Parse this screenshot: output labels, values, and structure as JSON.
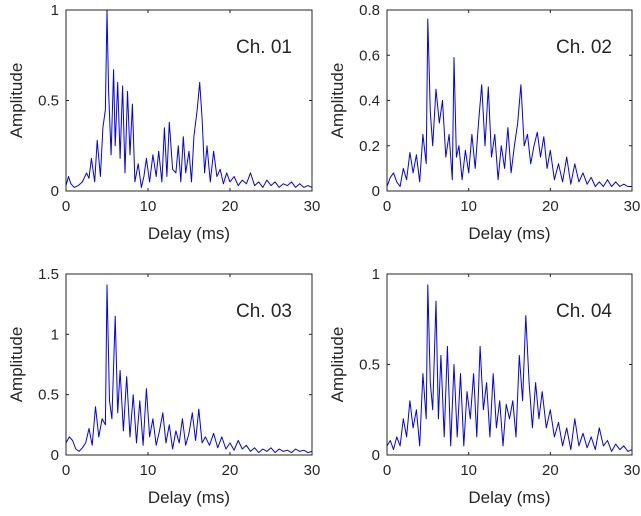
{
  "chart_data": [
    {
      "type": "line",
      "annotation": "Ch. 01",
      "xlabel": "Delay (ms)",
      "ylabel": "Amplitude",
      "xlim": [
        0,
        30
      ],
      "ylim": [
        0,
        1
      ],
      "xticks": [
        "0",
        "10",
        "20",
        "30"
      ],
      "yticks": [
        "0",
        "0.5",
        "1"
      ],
      "line_color": "#0000ff",
      "grid": false,
      "x": [
        0,
        0.3,
        0.6,
        1.0,
        1.5,
        2.0,
        2.5,
        2.8,
        3.1,
        3.5,
        3.8,
        4.2,
        4.5,
        4.8,
        5.0,
        5.2,
        5.5,
        5.8,
        6.0,
        6.3,
        6.6,
        6.9,
        7.2,
        7.5,
        7.8,
        8.1,
        8.4,
        8.8,
        9.2,
        9.5,
        9.8,
        10.2,
        10.6,
        11.0,
        11.3,
        11.7,
        12.0,
        12.3,
        12.6,
        13.0,
        13.4,
        13.7,
        14.0,
        14.3,
        14.6,
        15.0,
        15.3,
        15.6,
        16.0,
        16.3,
        16.6,
        16.9,
        17.2,
        17.6,
        18.0,
        18.4,
        18.8,
        19.2,
        19.6,
        20.0,
        20.5,
        21.0,
        21.5,
        22.0,
        22.5,
        23.0,
        23.5,
        24.0,
        24.5,
        25.0,
        25.5,
        26.0,
        26.5,
        27.0,
        27.5,
        28.0,
        28.5,
        29.0,
        29.5,
        30.0
      ],
      "y": [
        0.03,
        0.08,
        0.04,
        0.02,
        0.03,
        0.05,
        0.1,
        0.07,
        0.18,
        0.05,
        0.28,
        0.08,
        0.35,
        0.45,
        1.0,
        0.55,
        0.2,
        0.67,
        0.25,
        0.6,
        0.18,
        0.58,
        0.1,
        0.55,
        0.2,
        0.48,
        0.05,
        0.15,
        0.02,
        0.08,
        0.18,
        0.05,
        0.2,
        0.08,
        0.22,
        0.05,
        0.35,
        0.08,
        0.38,
        0.12,
        0.1,
        0.25,
        0.05,
        0.3,
        0.1,
        0.22,
        0.05,
        0.3,
        0.45,
        0.6,
        0.4,
        0.1,
        0.25,
        0.05,
        0.22,
        0.08,
        0.12,
        0.04,
        0.1,
        0.05,
        0.08,
        0.03,
        0.06,
        0.04,
        0.1,
        0.03,
        0.05,
        0.02,
        0.06,
        0.03,
        0.05,
        0.02,
        0.04,
        0.03,
        0.05,
        0.02,
        0.04,
        0.02,
        0.03,
        0.02
      ]
    },
    {
      "type": "line",
      "annotation": "Ch. 02",
      "xlabel": "Delay (ms)",
      "ylabel": "Amplitude",
      "xlim": [
        0,
        30
      ],
      "ylim": [
        0,
        0.8
      ],
      "xticks": [
        "0",
        "10",
        "20",
        "30"
      ],
      "yticks": [
        "0",
        "0.2",
        "0.4",
        "0.6",
        "0.8"
      ],
      "line_color": "#0000ff",
      "grid": false,
      "x": [
        0,
        0.4,
        0.8,
        1.2,
        1.6,
        2.0,
        2.4,
        2.8,
        3.2,
        3.6,
        4.0,
        4.4,
        4.8,
        5.0,
        5.3,
        5.6,
        6.0,
        6.4,
        6.8,
        7.2,
        7.6,
        8.0,
        8.2,
        8.5,
        8.8,
        9.2,
        9.6,
        10.0,
        10.4,
        10.8,
        11.2,
        11.6,
        12.0,
        12.4,
        12.8,
        13.2,
        13.6,
        14.0,
        14.4,
        14.8,
        15.2,
        15.6,
        16.0,
        16.4,
        16.8,
        17.2,
        17.6,
        18.0,
        18.4,
        18.8,
        19.2,
        19.6,
        20.0,
        20.5,
        21.0,
        21.5,
        22.0,
        22.5,
        23.0,
        23.5,
        24.0,
        24.5,
        25.0,
        25.5,
        26.0,
        26.5,
        27.0,
        27.5,
        28.0,
        28.5,
        29.0,
        29.5,
        30.0
      ],
      "y": [
        0.02,
        0.06,
        0.08,
        0.04,
        0.02,
        0.1,
        0.05,
        0.17,
        0.08,
        0.16,
        0.04,
        0.25,
        0.12,
        0.76,
        0.35,
        0.2,
        0.45,
        0.3,
        0.4,
        0.15,
        0.25,
        0.05,
        0.59,
        0.15,
        0.2,
        0.05,
        0.18,
        0.08,
        0.25,
        0.1,
        0.3,
        0.47,
        0.2,
        0.46,
        0.15,
        0.25,
        0.05,
        0.2,
        0.1,
        0.28,
        0.08,
        0.2,
        0.3,
        0.47,
        0.2,
        0.25,
        0.12,
        0.2,
        0.26,
        0.15,
        0.24,
        0.1,
        0.18,
        0.05,
        0.12,
        0.04,
        0.15,
        0.03,
        0.12,
        0.04,
        0.08,
        0.03,
        0.06,
        0.02,
        0.04,
        0.02,
        0.05,
        0.02,
        0.04,
        0.02,
        0.03,
        0.02,
        0.02
      ]
    },
    {
      "type": "line",
      "annotation": "Ch. 03",
      "xlabel": "Delay (ms)",
      "ylabel": "Amplitude",
      "xlim": [
        0,
        30
      ],
      "ylim": [
        0,
        1.5
      ],
      "xticks": [
        "0",
        "10",
        "20",
        "30"
      ],
      "yticks": [
        "0",
        "0.5",
        "1",
        "1.5"
      ],
      "line_color": "#0000ff",
      "grid": false,
      "x": [
        0,
        0.4,
        0.8,
        1.2,
        1.6,
        2.0,
        2.4,
        2.8,
        3.2,
        3.6,
        4.0,
        4.4,
        4.8,
        5.0,
        5.3,
        5.6,
        6.0,
        6.3,
        6.6,
        7.0,
        7.4,
        7.8,
        8.2,
        8.6,
        9.0,
        9.4,
        9.8,
        10.2,
        10.6,
        11.0,
        11.4,
        11.8,
        12.2,
        12.6,
        13.0,
        13.4,
        13.8,
        14.2,
        14.6,
        15.0,
        15.4,
        15.8,
        16.2,
        16.6,
        17.0,
        17.5,
        18.0,
        18.5,
        19.0,
        19.5,
        20.0,
        20.5,
        21.0,
        21.5,
        22.0,
        22.5,
        23.0,
        23.5,
        24.0,
        24.5,
        25.0,
        25.5,
        26.0,
        26.5,
        27.0,
        27.5,
        28.0,
        28.5,
        29.0,
        29.5,
        30.0
      ],
      "y": [
        0.1,
        0.15,
        0.12,
        0.05,
        0.03,
        0.06,
        0.1,
        0.22,
        0.08,
        0.4,
        0.15,
        0.3,
        0.25,
        1.41,
        0.45,
        0.3,
        1.15,
        0.35,
        0.7,
        0.2,
        0.65,
        0.15,
        0.5,
        0.1,
        0.45,
        0.08,
        0.55,
        0.15,
        0.3,
        0.08,
        0.2,
        0.35,
        0.1,
        0.25,
        0.05,
        0.2,
        0.1,
        0.3,
        0.08,
        0.18,
        0.35,
        0.12,
        0.38,
        0.1,
        0.15,
        0.08,
        0.18,
        0.06,
        0.15,
        0.05,
        0.1,
        0.04,
        0.12,
        0.05,
        0.08,
        0.03,
        0.06,
        0.02,
        0.05,
        0.03,
        0.06,
        0.02,
        0.05,
        0.03,
        0.04,
        0.02,
        0.05,
        0.03,
        0.04,
        0.02,
        0.03
      ]
    },
    {
      "type": "line",
      "annotation": "Ch. 04",
      "xlabel": "Delay (ms)",
      "ylabel": "Amplitude",
      "xlim": [
        0,
        30
      ],
      "ylim": [
        0,
        1
      ],
      "xticks": [
        "0",
        "10",
        "20",
        "30"
      ],
      "yticks": [
        "0",
        "0.5",
        "1"
      ],
      "line_color": "#0000ff",
      "grid": false,
      "x": [
        0,
        0.4,
        0.8,
        1.2,
        1.6,
        2.0,
        2.4,
        2.8,
        3.2,
        3.6,
        4.0,
        4.4,
        4.8,
        5.0,
        5.3,
        5.6,
        6.0,
        6.3,
        6.6,
        7.0,
        7.4,
        7.8,
        8.2,
        8.6,
        9.0,
        9.4,
        9.8,
        10.2,
        10.6,
        11.0,
        11.4,
        11.8,
        12.2,
        12.6,
        13.0,
        13.4,
        13.8,
        14.2,
        14.6,
        15.0,
        15.4,
        15.8,
        16.2,
        16.6,
        17.0,
        17.4,
        17.8,
        18.2,
        18.6,
        19.0,
        19.5,
        20.0,
        20.5,
        21.0,
        21.5,
        22.0,
        22.5,
        23.0,
        23.5,
        24.0,
        24.5,
        25.0,
        25.5,
        26.0,
        26.5,
        27.0,
        27.5,
        28.0,
        28.5,
        29.0,
        29.5,
        30.0
      ],
      "y": [
        0.05,
        0.08,
        0.03,
        0.1,
        0.05,
        0.2,
        0.1,
        0.3,
        0.15,
        0.25,
        0.05,
        0.45,
        0.2,
        0.94,
        0.4,
        0.25,
        0.85,
        0.2,
        0.55,
        0.1,
        0.6,
        0.05,
        0.5,
        0.1,
        0.45,
        0.05,
        0.35,
        0.2,
        0.45,
        0.1,
        0.6,
        0.25,
        0.4,
        0.1,
        0.45,
        0.15,
        0.3,
        0.05,
        0.28,
        0.2,
        0.3,
        0.1,
        0.55,
        0.3,
        0.77,
        0.4,
        0.15,
        0.4,
        0.2,
        0.35,
        0.15,
        0.25,
        0.1,
        0.18,
        0.05,
        0.15,
        0.03,
        0.2,
        0.05,
        0.12,
        0.04,
        0.1,
        0.03,
        0.15,
        0.05,
        0.08,
        0.02,
        0.06,
        0.03,
        0.05,
        0.02,
        0.03
      ]
    }
  ]
}
